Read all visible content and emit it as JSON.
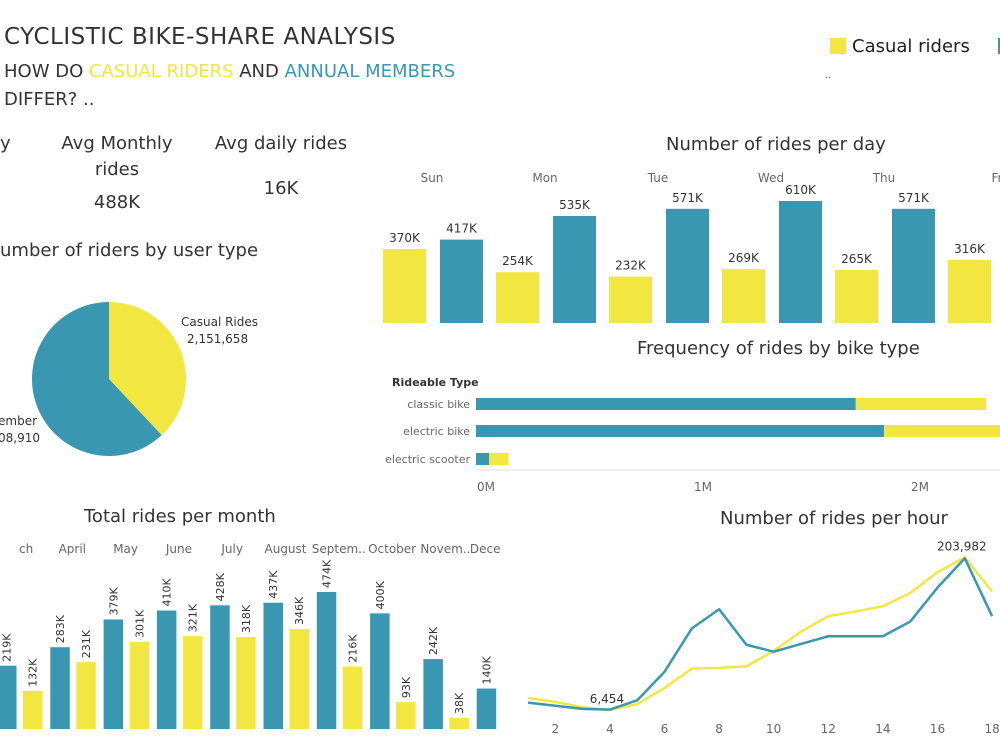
{
  "header": {
    "title": "CYCLISTIC  BIKE-SHARE ANALYSIS",
    "subtitle_parts": [
      "HOW DO ",
      "CASUAL RIDERS",
      " AND ",
      "ANNUAL MEMBERS",
      "DIFFER? .."
    ]
  },
  "legend": {
    "items": [
      {
        "label": "Casual riders",
        "color": "#F2E641"
      },
      {
        "label": "",
        "color": "#3A97B1"
      }
    ],
    "note": ".."
  },
  "kpis": {
    "cut_label": "y",
    "monthly_label": "Avg Monthly rides",
    "monthly_value": "488K",
    "daily_label": "Avg daily rides",
    "daily_value": "16K"
  },
  "colors": {
    "casual": "#F2E641",
    "member": "#3A97B1",
    "grid": "#dddddd",
    "text": "#333333",
    "tick": "#666666"
  },
  "chart_data": [
    {
      "id": "rides-per-day",
      "type": "bar",
      "title": "Number of rides per day",
      "categories": [
        "Sun",
        "Mon",
        "Tue",
        "Wed",
        "Thu",
        "Fr"
      ],
      "series": [
        {
          "name": "Casual riders",
          "values": [
            370,
            254,
            232,
            269,
            265,
            316
          ],
          "labels": [
            "370K",
            "254K",
            "232K",
            "269K",
            "265K",
            "316K"
          ]
        },
        {
          "values": [
            417,
            535,
            571,
            610,
            571,
            null
          ],
          "labels": [
            "417K",
            "535K",
            "571K",
            "610K",
            "571K",
            ""
          ]
        }
      ],
      "unit": "K"
    },
    {
      "id": "riders-by-user-type",
      "type": "pie",
      "title": "umber of riders by user type",
      "slices": [
        {
          "name": "Casual Rides",
          "value": 2151658,
          "label": "2,151,658"
        },
        {
          "name": "ember",
          "value": 3508910,
          "label": "08,910"
        }
      ]
    },
    {
      "id": "rides-by-bike-type",
      "type": "bar",
      "orientation": "horizontal",
      "title": "Frequency of rides by bike type",
      "axis_title": "Rideable Type",
      "categories": [
        "classic bike",
        "electric bike",
        "electric scooter"
      ],
      "series": [
        {
          "values": [
            1.75,
            1.88,
            0.06
          ]
        },
        {
          "name": "Casual riders",
          "values": [
            0.6,
            0.6,
            0.09
          ]
        }
      ],
      "xticks": [
        "0M",
        "1M",
        "2M"
      ],
      "xtick_values": [
        0,
        1,
        2
      ],
      "xlim": [
        0,
        2.43
      ]
    },
    {
      "id": "rides-per-month",
      "type": "bar",
      "title": "Total rides per month",
      "categories": [
        "ch",
        "April",
        "May",
        "June",
        "July",
        "August",
        "Septem..",
        "October",
        "Novem..",
        "Decemb.."
      ],
      "series": [
        {
          "values": [
            219,
            283,
            379,
            410,
            428,
            437,
            474,
            400,
            242,
            140
          ],
          "labels": [
            "219K",
            "283K",
            "379K",
            "410K",
            "428K",
            "437K",
            "474K",
            "400K",
            "242K",
            "140K"
          ]
        },
        {
          "name": "Casual riders",
          "values": [
            132,
            231,
            301,
            321,
            318,
            346,
            216,
            93,
            38,
            null
          ],
          "labels": [
            "132K",
            "231K",
            "301K",
            "321K",
            "318K",
            "346K",
            "216K",
            "93K",
            "38K",
            ""
          ]
        }
      ],
      "unit": "K"
    },
    {
      "id": "rides-per-hour",
      "type": "line",
      "title": "Number of rides per hour",
      "x": [
        1,
        2,
        3,
        4,
        5,
        6,
        7,
        8,
        9,
        10,
        11,
        12,
        13,
        14,
        15,
        16,
        17,
        18
      ],
      "series": [
        {
          "name": "Casual riders",
          "values": [
            22000,
            17000,
            10000,
            6454,
            14000,
            35000,
            60000,
            61000,
            63000,
            83000,
            108000,
            128000,
            134000,
            141000,
            158000,
            185000,
            203982,
            160000
          ]
        },
        {
          "values": [
            16000,
            12000,
            8000,
            7000,
            19000,
            56000,
            112000,
            137000,
            91000,
            82000,
            92000,
            102000,
            102000,
            102000,
            121000,
            165000,
            203000,
            128000
          ]
        }
      ],
      "annotations": [
        {
          "x": 4,
          "text": "6,454"
        },
        {
          "x": 17,
          "text": "203,982"
        }
      ],
      "xticks": [
        2,
        4,
        6,
        8,
        10,
        12,
        14,
        16,
        18
      ],
      "ylim": [
        0,
        215000
      ]
    }
  ]
}
